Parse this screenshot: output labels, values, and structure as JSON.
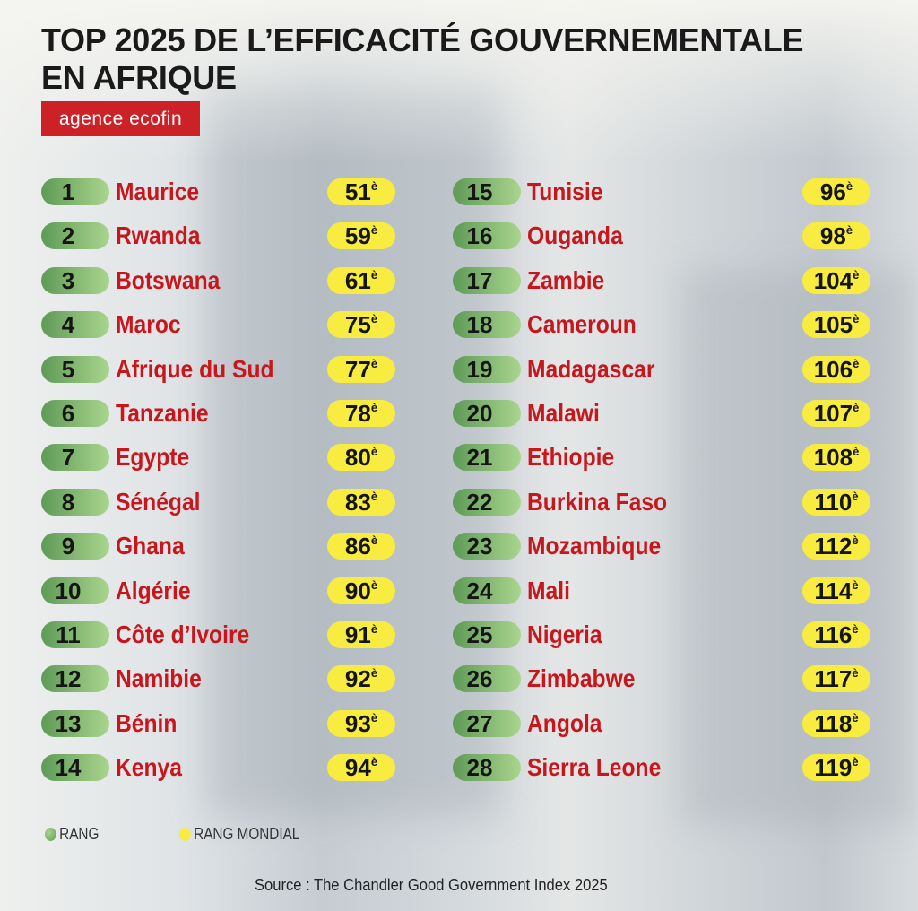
{
  "title": {
    "light": "TOP 2025 ",
    "bold_line1": "DE L’EFFICACITÉ GOUVERNEMENTALE",
    "bold_line2": "EN AFRIQUE"
  },
  "logo": "agence ecofin",
  "suffix": "è",
  "rows": [
    {
      "rank": "1",
      "country": "Maurice",
      "world": "51"
    },
    {
      "rank": "2",
      "country": "Rwanda",
      "world": "59"
    },
    {
      "rank": "3",
      "country": "Botswana",
      "world": "61"
    },
    {
      "rank": "4",
      "country": "Maroc",
      "world": "75"
    },
    {
      "rank": "5",
      "country": "Afrique du Sud",
      "world": "77"
    },
    {
      "rank": "6",
      "country": "Tanzanie",
      "world": "78"
    },
    {
      "rank": "7",
      "country": "Egypte",
      "world": "80"
    },
    {
      "rank": "8",
      "country": "Sénégal",
      "world": "83"
    },
    {
      "rank": "9",
      "country": "Ghana",
      "world": "86"
    },
    {
      "rank": "10",
      "country": "Algérie",
      "world": "90"
    },
    {
      "rank": "11",
      "country": "Côte d’Ivoire",
      "world": "91"
    },
    {
      "rank": "12",
      "country": "Namibie",
      "world": "92"
    },
    {
      "rank": "13",
      "country": "Bénin",
      "world": "93"
    },
    {
      "rank": "14",
      "country": "Kenya",
      "world": "94"
    },
    {
      "rank": "15",
      "country": "Tunisie",
      "world": "96"
    },
    {
      "rank": "16",
      "country": "Ouganda",
      "world": "98"
    },
    {
      "rank": "17",
      "country": "Zambie",
      "world": "104"
    },
    {
      "rank": "18",
      "country": "Cameroun",
      "world": "105"
    },
    {
      "rank": "19",
      "country": "Madagascar",
      "world": "106"
    },
    {
      "rank": "20",
      "country": "Malawi",
      "world": "107"
    },
    {
      "rank": "21",
      "country": "Ethiopie",
      "world": "108"
    },
    {
      "rank": "22",
      "country": "Burkina Faso",
      "world": "110"
    },
    {
      "rank": "23",
      "country": "Mozambique",
      "world": "112"
    },
    {
      "rank": "24",
      "country": "Mali",
      "world": "114"
    },
    {
      "rank": "25",
      "country": "Nigeria",
      "world": "116"
    },
    {
      "rank": "26",
      "country": "Zimbabwe",
      "world": "117"
    },
    {
      "rank": "27",
      "country": "Angola",
      "world": "118"
    },
    {
      "rank": "28",
      "country": "Sierra Leone",
      "world": "119"
    }
  ],
  "legend": {
    "rang": "RANG",
    "rang_mondial": "RANG MONDIAL"
  },
  "colors": {
    "green": "#7cb56a",
    "yellow": "#f7ec3f",
    "red": "#c8161d"
  },
  "source": "Source : The Chandler Good Government Index 2025"
}
